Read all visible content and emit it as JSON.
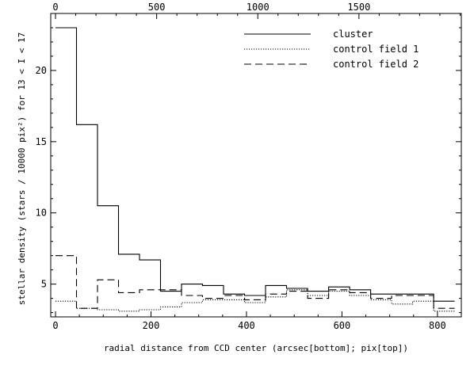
{
  "chart_data": {
    "type": "line",
    "style": "step histogram",
    "title": "",
    "xlabel": "radial distance from CCD center (arcsec[bottom]; pix[top])",
    "ylabel": "stellar density (stars / 10000 pix²) for 13 < I < 17",
    "xlim": [
      -10,
      850
    ],
    "ylim": [
      2.7,
      24
    ],
    "x_ticks": [
      0,
      200,
      400,
      600,
      800
    ],
    "y_ticks": [
      5,
      10,
      15,
      20
    ],
    "x_top_ticks": [
      0,
      500,
      1000,
      1500
    ],
    "x_top_unit": "pix",
    "bin_edges": [
      0,
      44,
      88,
      132,
      176,
      220,
      264,
      308,
      352,
      396,
      440,
      484,
      528,
      572,
      616,
      660,
      704,
      748,
      792,
      836
    ],
    "series": [
      {
        "name": "cluster",
        "line_style": "solid",
        "values": [
          23.0,
          16.2,
          10.5,
          7.1,
          6.7,
          4.5,
          5.0,
          4.9,
          4.3,
          4.2,
          4.9,
          4.7,
          4.5,
          4.8,
          4.6,
          4.3,
          4.3,
          4.3,
          3.8
        ]
      },
      {
        "name": "control field 1",
        "line_style": "dotted",
        "values": [
          3.8,
          3.3,
          3.2,
          3.1,
          3.2,
          3.4,
          3.7,
          3.9,
          3.9,
          3.7,
          4.1,
          4.6,
          4.2,
          4.5,
          4.2,
          3.9,
          3.6,
          3.8,
          3.1
        ]
      },
      {
        "name": "control field 2",
        "line_style": "dashed",
        "values": [
          7.0,
          3.3,
          5.3,
          4.4,
          4.6,
          4.6,
          4.2,
          4.0,
          4.2,
          3.9,
          4.3,
          4.5,
          4.0,
          4.6,
          4.4,
          4.0,
          4.2,
          4.2,
          3.3
        ]
      }
    ],
    "legend_position": "top-right"
  },
  "colors": {
    "background": "#ffffff",
    "ink": "#000000"
  }
}
